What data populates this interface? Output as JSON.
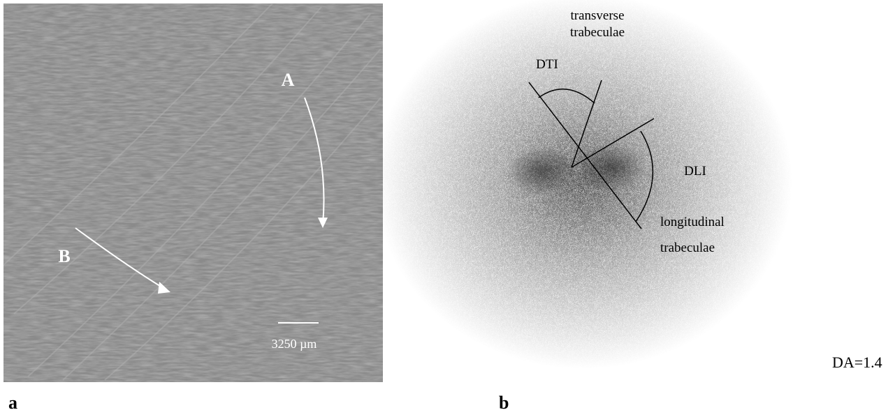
{
  "panel_a": {
    "label": "a",
    "arrow_labels": [
      "A",
      "B"
    ],
    "scale_bar": "3250 µm"
  },
  "panel_b": {
    "label": "b",
    "title_lines": [
      "transverse",
      "trabeculae"
    ],
    "dti": "DTI",
    "dli": "DLI",
    "longitudinal_lines": [
      "longitudinal",
      "trabeculae"
    ]
  },
  "da": "DA=1.4"
}
